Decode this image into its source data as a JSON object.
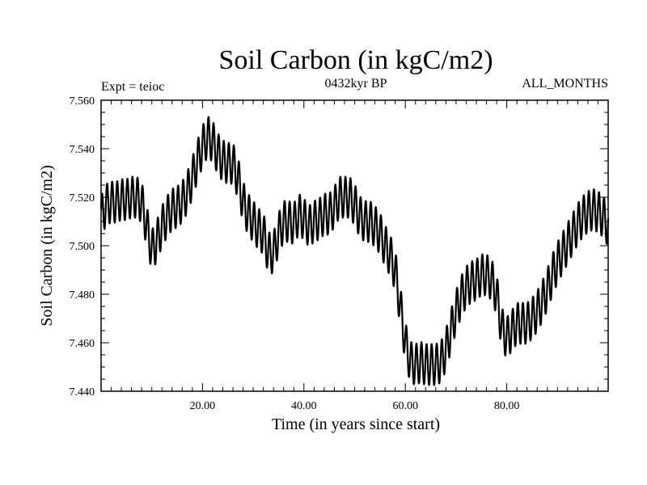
{
  "chart_data": {
    "type": "line",
    "title": "Soil Carbon (in kgC/m2)",
    "subtitle_left": "Expt = teioc",
    "subtitle_center": "0432kyr BP",
    "subtitle_right": "ALL_MONTHS",
    "xlabel": "Time (in years since start)",
    "ylabel": "Soil Carbon (in kgC/m2)",
    "xlim": [
      0,
      100
    ],
    "ylim": [
      7.44,
      7.56
    ],
    "x_ticks": [
      20,
      40,
      60,
      80
    ],
    "x_tick_labels": [
      "20.00",
      "40.00",
      "60.00",
      "80.00"
    ],
    "y_ticks": [
      7.44,
      7.46,
      7.48,
      7.5,
      7.52,
      7.54,
      7.56
    ],
    "y_tick_labels": [
      "7.440",
      "7.460",
      "7.480",
      "7.500",
      "7.520",
      "7.540",
      "7.560"
    ],
    "seasonal_amplitude": 0.0085,
    "seasonal_period_years": 1,
    "series": [
      {
        "name": "Soil Carbon",
        "color": "#000000",
        "trend_x": [
          0,
          1,
          2,
          3,
          4,
          5,
          6,
          7,
          8,
          9,
          10,
          11,
          12,
          13,
          14,
          15,
          16,
          17,
          18,
          19,
          20,
          21,
          22,
          23,
          24,
          25,
          26,
          27,
          28,
          29,
          30,
          31,
          32,
          33,
          34,
          35,
          36,
          37,
          38,
          39,
          40,
          41,
          42,
          43,
          44,
          45,
          46,
          47,
          48,
          49,
          50,
          51,
          52,
          53,
          54,
          55,
          56,
          57,
          58,
          59,
          60,
          61,
          62,
          63,
          64,
          65,
          66,
          67,
          68,
          69,
          70,
          71,
          72,
          73,
          74,
          75,
          76,
          77,
          78,
          79,
          80,
          81,
          82,
          83,
          84,
          85,
          86,
          87,
          88,
          89,
          90,
          91,
          92,
          93,
          94,
          95,
          96,
          97,
          98,
          99,
          100
        ],
        "trend_y": [
          7.512,
          7.517,
          7.518,
          7.518,
          7.519,
          7.519,
          7.52,
          7.52,
          7.518,
          7.508,
          7.498,
          7.502,
          7.508,
          7.512,
          7.515,
          7.516,
          7.518,
          7.522,
          7.528,
          7.535,
          7.541,
          7.545,
          7.543,
          7.538,
          7.535,
          7.534,
          7.534,
          7.528,
          7.518,
          7.513,
          7.51,
          7.507,
          7.505,
          7.497,
          7.497,
          7.505,
          7.51,
          7.51,
          7.509,
          7.513,
          7.511,
          7.508,
          7.51,
          7.511,
          7.513,
          7.513,
          7.516,
          7.52,
          7.52,
          7.52,
          7.517,
          7.512,
          7.51,
          7.51,
          7.508,
          7.505,
          7.5,
          7.496,
          7.49,
          7.475,
          7.46,
          7.452,
          7.451,
          7.452,
          7.451,
          7.451,
          7.451,
          7.452,
          7.457,
          7.465,
          7.473,
          7.479,
          7.483,
          7.485,
          7.486,
          7.488,
          7.488,
          7.486,
          7.48,
          7.466,
          7.462,
          7.465,
          7.468,
          7.468,
          7.468,
          7.47,
          7.473,
          7.477,
          7.482,
          7.488,
          7.493,
          7.497,
          7.501,
          7.505,
          7.509,
          7.512,
          7.514,
          7.515,
          7.514,
          7.512,
          7.508
        ]
      }
    ]
  }
}
